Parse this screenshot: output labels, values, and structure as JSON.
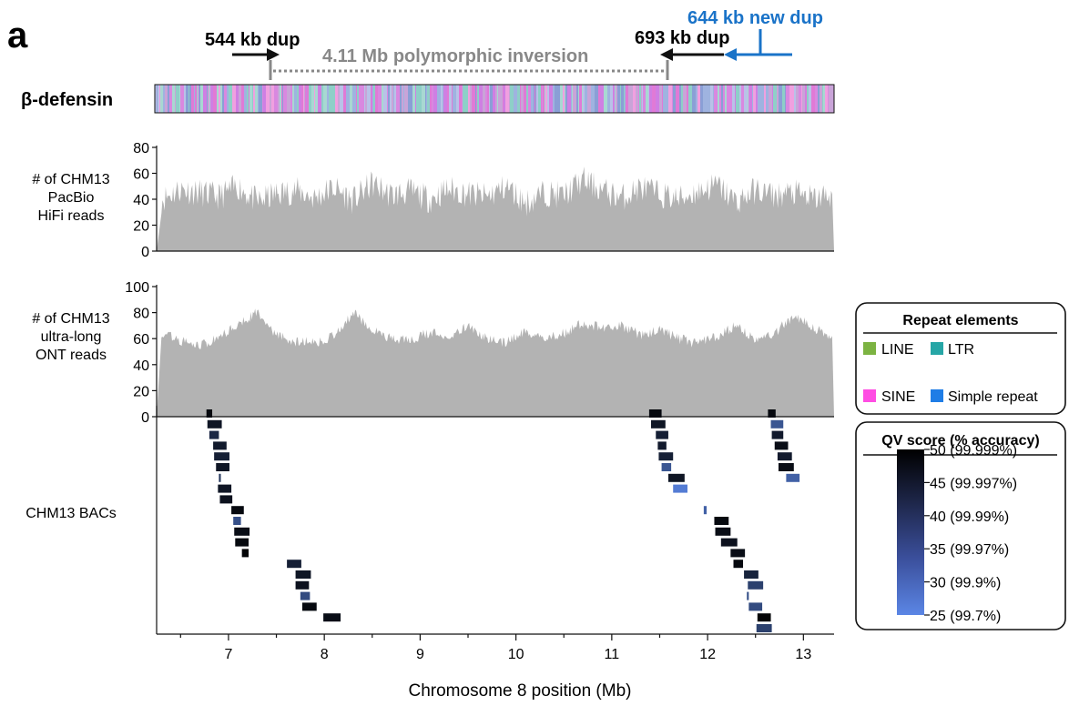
{
  "figure": {
    "panel_letter": "a",
    "defensin_label": "β-defensin",
    "annotations": {
      "dup544": "544 kb dup",
      "inversion": "4.11 Mb polymorphic inversion",
      "dup693": "693 kb dup",
      "dup644": "644 kb new dup"
    },
    "colors": {
      "black": "#111111",
      "gray": "#888888",
      "blue": "#1a73c8",
      "area": "#b3b3b3"
    }
  },
  "chart_data": [
    {
      "type": "area",
      "ylabel": "# of CHM13 PacBio HiFi reads",
      "ylabel_lines": [
        "# of CHM13",
        "PacBio",
        "HiFi reads"
      ],
      "ylim": [
        0,
        80
      ],
      "yticks": [
        "0",
        "20",
        "40",
        "60",
        "80"
      ],
      "x": [
        6.3,
        6.5,
        6.7,
        6.9,
        7.1,
        7.3,
        7.5,
        7.7,
        7.9,
        8.1,
        8.3,
        8.5,
        8.7,
        8.9,
        9.1,
        9.3,
        9.5,
        9.7,
        9.9,
        10.1,
        10.3,
        10.5,
        10.7,
        10.9,
        11.1,
        11.3,
        11.5,
        11.7,
        11.9,
        12.1,
        12.3,
        12.5,
        12.7,
        12.9,
        13.1,
        13.3
      ],
      "values": [
        40,
        48,
        45,
        42,
        50,
        38,
        44,
        47,
        41,
        49,
        39,
        52,
        43,
        46,
        40,
        48,
        44,
        42,
        50,
        37,
        45,
        43,
        55,
        47,
        41,
        49,
        44,
        40,
        46,
        51,
        38,
        47,
        43,
        45,
        40,
        44
      ]
    },
    {
      "type": "area",
      "ylabel": "# of CHM13 ultra-long ONT reads",
      "ylabel_lines": [
        "# of CHM13",
        "ultra-long",
        "ONT reads"
      ],
      "ylim": [
        0,
        100
      ],
      "yticks": [
        "0",
        "20",
        "40",
        "60",
        "80",
        "100"
      ],
      "x": [
        6.3,
        6.5,
        6.7,
        6.9,
        7.1,
        7.3,
        7.5,
        7.7,
        7.9,
        8.1,
        8.3,
        8.5,
        8.7,
        8.9,
        9.1,
        9.3,
        9.5,
        9.7,
        9.9,
        10.1,
        10.3,
        10.5,
        10.7,
        10.9,
        11.1,
        11.3,
        11.5,
        11.7,
        11.9,
        12.1,
        12.3,
        12.5,
        12.7,
        12.9,
        13.1,
        13.3
      ],
      "values": [
        65,
        58,
        55,
        60,
        72,
        80,
        62,
        58,
        57,
        62,
        80,
        68,
        60,
        59,
        65,
        62,
        70,
        60,
        57,
        66,
        60,
        64,
        72,
        68,
        70,
        63,
        67,
        60,
        56,
        62,
        70,
        58,
        64,
        78,
        68,
        62
      ]
    },
    {
      "type": "bar",
      "ylabel": "CHM13 BACs",
      "xlabel": "Chromosome 8 position (Mb)",
      "xlim": [
        6.25,
        13.32
      ],
      "xticks": [
        "7",
        "8",
        "9",
        "10",
        "11",
        "12",
        "13"
      ],
      "bacs": [
        {
          "start": 6.77,
          "end": 6.83,
          "qv": 48
        },
        {
          "start": 6.78,
          "end": 6.93,
          "qv": 45
        },
        {
          "start": 6.8,
          "end": 6.9,
          "qv": 41
        },
        {
          "start": 6.84,
          "end": 6.98,
          "qv": 44
        },
        {
          "start": 6.85,
          "end": 7.01,
          "qv": 43
        },
        {
          "start": 6.87,
          "end": 7.01,
          "qv": 45
        },
        {
          "start": 6.9,
          "end": 6.92,
          "qv": 38
        },
        {
          "start": 6.89,
          "end": 7.03,
          "qv": 45
        },
        {
          "start": 6.91,
          "end": 7.04,
          "qv": 46
        },
        {
          "start": 7.03,
          "end": 7.16,
          "qv": 48
        },
        {
          "start": 7.05,
          "end": 7.13,
          "qv": 33
        },
        {
          "start": 7.06,
          "end": 7.22,
          "qv": 47
        },
        {
          "start": 7.07,
          "end": 7.21,
          "qv": 48
        },
        {
          "start": 7.14,
          "end": 7.21,
          "qv": 49
        },
        {
          "start": 7.61,
          "end": 7.76,
          "qv": 43
        },
        {
          "start": 7.7,
          "end": 7.86,
          "qv": 45
        },
        {
          "start": 7.7,
          "end": 7.84,
          "qv": 46
        },
        {
          "start": 7.75,
          "end": 7.85,
          "qv": 34
        },
        {
          "start": 7.77,
          "end": 7.92,
          "qv": 48
        },
        {
          "start": 7.99,
          "end": 8.17,
          "qv": 47
        },
        {
          "start": 11.39,
          "end": 11.52,
          "qv": 48
        },
        {
          "start": 11.41,
          "end": 11.56,
          "qv": 45
        },
        {
          "start": 11.46,
          "end": 11.59,
          "qv": 43
        },
        {
          "start": 11.48,
          "end": 11.57,
          "qv": 44
        },
        {
          "start": 11.49,
          "end": 11.64,
          "qv": 43
        },
        {
          "start": 11.52,
          "end": 11.62,
          "qv": 32
        },
        {
          "start": 11.59,
          "end": 11.76,
          "qv": 45
        },
        {
          "start": 11.64,
          "end": 11.79,
          "qv": 26
        },
        {
          "start": 11.96,
          "end": 11.99,
          "qv": 30
        },
        {
          "start": 12.07,
          "end": 12.22,
          "qv": 48
        },
        {
          "start": 12.08,
          "end": 12.24,
          "qv": 47
        },
        {
          "start": 12.14,
          "end": 12.31,
          "qv": 46
        },
        {
          "start": 12.24,
          "end": 12.39,
          "qv": 47
        },
        {
          "start": 12.27,
          "end": 12.37,
          "qv": 48
        },
        {
          "start": 12.38,
          "end": 12.53,
          "qv": 42
        },
        {
          "start": 12.42,
          "end": 12.58,
          "qv": 36
        },
        {
          "start": 12.41,
          "end": 12.43,
          "qv": 33
        },
        {
          "start": 12.43,
          "end": 12.57,
          "qv": 34
        },
        {
          "start": 12.52,
          "end": 12.66,
          "qv": 49
        },
        {
          "start": 12.51,
          "end": 12.67,
          "qv": 36
        },
        {
          "start": 12.63,
          "end": 12.71,
          "qv": 48
        },
        {
          "start": 12.66,
          "end": 12.79,
          "qv": 32
        },
        {
          "start": 12.67,
          "end": 12.79,
          "qv": 44
        },
        {
          "start": 12.7,
          "end": 12.84,
          "qv": 47
        },
        {
          "start": 12.73,
          "end": 12.88,
          "qv": 44
        },
        {
          "start": 12.74,
          "end": 12.9,
          "qv": 47
        },
        {
          "start": 12.82,
          "end": 12.96,
          "qv": 30
        }
      ]
    }
  ],
  "legends": {
    "repeat": {
      "title": "Repeat elements",
      "items": [
        {
          "label": "LINE",
          "color": "#7cb342"
        },
        {
          "label": "LTR",
          "color": "#26a6a6"
        },
        {
          "label": "SINE",
          "color": "#ff4de3"
        },
        {
          "label": "Simple repeat",
          "color": "#1f7de6"
        }
      ]
    },
    "qv": {
      "title": "QV score (% accuracy)",
      "ticks": [
        "50 (99.999%)",
        "45 (99.997%)",
        "40 (99.99%)",
        "35 (99.97%)",
        "30 (99.9%)",
        "25 (99.7%)"
      ],
      "range": [
        25,
        50
      ],
      "color_low": "#5b86e5",
      "color_high": "#000000"
    }
  }
}
